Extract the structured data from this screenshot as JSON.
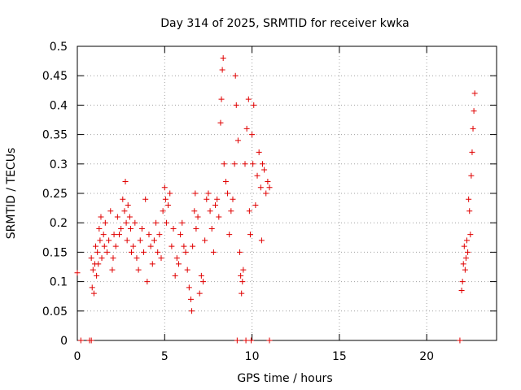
{
  "chart_data": {
    "type": "scatter",
    "title": "Day 314 of 2025, SRMTID for receiver kwka",
    "xlabel": "GPS time / hours",
    "ylabel": "SRMTID / TECUs",
    "xlim": [
      0,
      24
    ],
    "ylim": [
      0,
      0.5
    ],
    "x_ticks": [
      0,
      5,
      10,
      15,
      20
    ],
    "x_tick_labels": [
      "0",
      "5",
      "10",
      "15",
      "20"
    ],
    "y_ticks": [
      0,
      0.05,
      0.1,
      0.15,
      0.2,
      0.25,
      0.3,
      0.35,
      0.4,
      0.45,
      0.5
    ],
    "y_tick_labels": [
      "0",
      "0.05",
      "0.1",
      "0.15",
      "0.2",
      "0.25",
      "0.3",
      "0.35",
      "0.4",
      "0.45",
      "0.5"
    ],
    "grid": true,
    "marker": "+",
    "marker_color": "#e00000",
    "series": [
      {
        "name": "SRMTID",
        "points": [
          [
            0.0,
            0.115
          ],
          [
            0.2,
            0.0
          ],
          [
            0.7,
            0.0
          ],
          [
            0.8,
            0.0
          ],
          [
            0.8,
            0.14
          ],
          [
            0.85,
            0.09
          ],
          [
            0.9,
            0.12
          ],
          [
            0.95,
            0.08
          ],
          [
            1.0,
            0.13
          ],
          [
            1.05,
            0.16
          ],
          [
            1.1,
            0.11
          ],
          [
            1.15,
            0.15
          ],
          [
            1.2,
            0.13
          ],
          [
            1.25,
            0.19
          ],
          [
            1.3,
            0.17
          ],
          [
            1.35,
            0.21
          ],
          [
            1.4,
            0.14
          ],
          [
            1.5,
            0.18
          ],
          [
            1.55,
            0.16
          ],
          [
            1.6,
            0.2
          ],
          [
            1.7,
            0.15
          ],
          [
            1.8,
            0.17
          ],
          [
            1.9,
            0.22
          ],
          [
            2.0,
            0.12
          ],
          [
            2.05,
            0.14
          ],
          [
            2.1,
            0.18
          ],
          [
            2.2,
            0.16
          ],
          [
            2.3,
            0.21
          ],
          [
            2.4,
            0.18
          ],
          [
            2.5,
            0.19
          ],
          [
            2.6,
            0.24
          ],
          [
            2.7,
            0.22
          ],
          [
            2.75,
            0.27
          ],
          [
            2.8,
            0.2
          ],
          [
            2.85,
            0.17
          ],
          [
            2.9,
            0.23
          ],
          [
            3.0,
            0.21
          ],
          [
            3.05,
            0.19
          ],
          [
            3.1,
            0.15
          ],
          [
            3.2,
            0.16
          ],
          [
            3.3,
            0.2
          ],
          [
            3.4,
            0.14
          ],
          [
            3.5,
            0.12
          ],
          [
            3.6,
            0.17
          ],
          [
            3.7,
            0.19
          ],
          [
            3.8,
            0.15
          ],
          [
            3.9,
            0.24
          ],
          [
            4.0,
            0.1
          ],
          [
            4.1,
            0.18
          ],
          [
            4.2,
            0.16
          ],
          [
            4.3,
            0.13
          ],
          [
            4.4,
            0.17
          ],
          [
            4.5,
            0.2
          ],
          [
            4.6,
            0.15
          ],
          [
            4.7,
            0.18
          ],
          [
            4.8,
            0.14
          ],
          [
            4.9,
            0.22
          ],
          [
            5.0,
            0.26
          ],
          [
            5.05,
            0.24
          ],
          [
            5.1,
            0.2
          ],
          [
            5.2,
            0.23
          ],
          [
            5.3,
            0.25
          ],
          [
            5.4,
            0.16
          ],
          [
            5.5,
            0.19
          ],
          [
            5.6,
            0.11
          ],
          [
            5.7,
            0.14
          ],
          [
            5.8,
            0.13
          ],
          [
            5.9,
            0.18
          ],
          [
            6.0,
            0.2
          ],
          [
            6.1,
            0.16
          ],
          [
            6.2,
            0.15
          ],
          [
            6.3,
            0.12
          ],
          [
            6.4,
            0.09
          ],
          [
            6.5,
            0.07
          ],
          [
            6.55,
            0.05
          ],
          [
            6.6,
            0.16
          ],
          [
            6.7,
            0.22
          ],
          [
            6.75,
            0.25
          ],
          [
            6.8,
            0.19
          ],
          [
            6.9,
            0.21
          ],
          [
            7.0,
            0.08
          ],
          [
            7.1,
            0.11
          ],
          [
            7.2,
            0.1
          ],
          [
            7.3,
            0.17
          ],
          [
            7.4,
            0.24
          ],
          [
            7.5,
            0.25
          ],
          [
            7.6,
            0.22
          ],
          [
            7.7,
            0.19
          ],
          [
            7.8,
            0.15
          ],
          [
            7.9,
            0.23
          ],
          [
            8.0,
            0.24
          ],
          [
            8.1,
            0.21
          ],
          [
            8.2,
            0.37
          ],
          [
            8.25,
            0.41
          ],
          [
            8.3,
            0.46
          ],
          [
            8.35,
            0.48
          ],
          [
            8.4,
            0.3
          ],
          [
            8.5,
            0.27
          ],
          [
            8.6,
            0.25
          ],
          [
            8.7,
            0.18
          ],
          [
            8.8,
            0.22
          ],
          [
            8.9,
            0.24
          ],
          [
            9.0,
            0.3
          ],
          [
            9.05,
            0.45
          ],
          [
            9.1,
            0.4
          ],
          [
            9.15,
            0.0
          ],
          [
            9.2,
            0.34
          ],
          [
            9.3,
            0.15
          ],
          [
            9.35,
            0.11
          ],
          [
            9.4,
            0.08
          ],
          [
            9.45,
            0.1
          ],
          [
            9.5,
            0.12
          ],
          [
            9.6,
            0.3
          ],
          [
            9.65,
            0.0
          ],
          [
            9.7,
            0.36
          ],
          [
            9.8,
            0.41
          ],
          [
            9.85,
            0.22
          ],
          [
            9.9,
            0.18
          ],
          [
            9.95,
            0.0
          ],
          [
            10.0,
            0.35
          ],
          [
            10.05,
            0.3
          ],
          [
            10.1,
            0.4
          ],
          [
            10.2,
            0.23
          ],
          [
            10.3,
            0.28
          ],
          [
            10.4,
            0.32
          ],
          [
            10.5,
            0.26
          ],
          [
            10.55,
            0.17
          ],
          [
            10.6,
            0.3
          ],
          [
            10.7,
            0.29
          ],
          [
            10.8,
            0.25
          ],
          [
            10.9,
            0.27
          ],
          [
            11.0,
            0.26
          ],
          [
            11.0,
            0.0
          ],
          [
            21.9,
            0.0
          ],
          [
            22.0,
            0.085
          ],
          [
            22.05,
            0.1
          ],
          [
            22.1,
            0.13
          ],
          [
            22.15,
            0.16
          ],
          [
            22.2,
            0.12
          ],
          [
            22.25,
            0.14
          ],
          [
            22.3,
            0.17
          ],
          [
            22.35,
            0.15
          ],
          [
            22.4,
            0.24
          ],
          [
            22.45,
            0.22
          ],
          [
            22.5,
            0.18
          ],
          [
            22.55,
            0.28
          ],
          [
            22.6,
            0.32
          ],
          [
            22.65,
            0.36
          ],
          [
            22.7,
            0.39
          ],
          [
            22.75,
            0.42
          ]
        ]
      }
    ]
  }
}
